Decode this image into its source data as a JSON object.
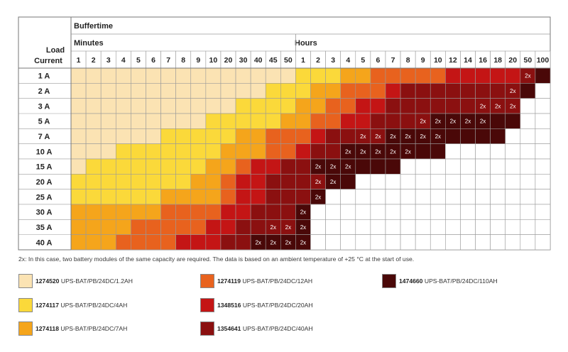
{
  "header": {
    "load_current_line1": "Load",
    "load_current_line2": "Current",
    "buffertime": "Buffertime",
    "minutes": "Minutes",
    "hours": "Hours"
  },
  "colors": {
    "A": "#FBE3B3",
    "B": "#FBD93A",
    "C": "#F5A51B",
    "D": "#E8621E",
    "E": "#C41515",
    "F": "#8B1010",
    "G": "#4A0808",
    "W": "#FFFFFF"
  },
  "chart_data": {
    "type": "table",
    "columns": [
      {
        "group": "Minutes",
        "label": "1"
      },
      {
        "group": "Minutes",
        "label": "2"
      },
      {
        "group": "Minutes",
        "label": "3"
      },
      {
        "group": "Minutes",
        "label": "4"
      },
      {
        "group": "Minutes",
        "label": "5"
      },
      {
        "group": "Minutes",
        "label": "6"
      },
      {
        "group": "Minutes",
        "label": "7"
      },
      {
        "group": "Minutes",
        "label": "8"
      },
      {
        "group": "Minutes",
        "label": "9"
      },
      {
        "group": "Minutes",
        "label": "10"
      },
      {
        "group": "Minutes",
        "label": "20"
      },
      {
        "group": "Minutes",
        "label": "30"
      },
      {
        "group": "Minutes",
        "label": "40"
      },
      {
        "group": "Minutes",
        "label": "45"
      },
      {
        "group": "Minutes",
        "label": "50"
      },
      {
        "group": "Hours",
        "label": "1"
      },
      {
        "group": "Hours",
        "label": "2"
      },
      {
        "group": "Hours",
        "label": "3"
      },
      {
        "group": "Hours",
        "label": "4"
      },
      {
        "group": "Hours",
        "label": "5"
      },
      {
        "group": "Hours",
        "label": "6"
      },
      {
        "group": "Hours",
        "label": "7"
      },
      {
        "group": "Hours",
        "label": "8"
      },
      {
        "group": "Hours",
        "label": "9"
      },
      {
        "group": "Hours",
        "label": "10"
      },
      {
        "group": "Hours",
        "label": "12"
      },
      {
        "group": "Hours",
        "label": "14"
      },
      {
        "group": "Hours",
        "label": "16"
      },
      {
        "group": "Hours",
        "label": "18"
      },
      {
        "group": "Hours",
        "label": "20"
      },
      {
        "group": "Hours",
        "label": "50"
      },
      {
        "group": "Hours",
        "label": "100"
      }
    ],
    "rows": [
      {
        "load": "1 A",
        "cells": "AAAAAAAAAAAAAAABBBCCDDDDDEEEEEFG",
        "double": [
          30
        ]
      },
      {
        "load": "2 A",
        "cells": "AAAAAAAAAAAAABBBCCDDDEFFFFFFFFGW",
        "double": [
          29
        ]
      },
      {
        "load": "3 A",
        "cells": "AAAAAAAAAAABBBBCCDDEEFFFFFFFFFWW",
        "double": [
          27,
          28,
          29
        ]
      },
      {
        "load": "5 A",
        "cells": "AAAAAAAAABBBBBCCDDEEFFFFGGGGGGWW",
        "double": [
          23,
          24,
          25,
          26,
          27
        ]
      },
      {
        "load": "7 A",
        "cells": "AAAAAABBBBBCCDDDEFFFFGGGGGGGGWWW",
        "double": [
          19,
          20,
          21,
          22,
          23,
          24
        ]
      },
      {
        "load": "10 A",
        "cells": "AAABBBBBBBCCCDDEFFGGGGGGGWWWWWWW",
        "double": [
          18,
          19,
          20,
          21,
          22
        ]
      },
      {
        "load": "15 A",
        "cells": "ABBBBBBBBCCDEEFFGGGGGGWWWWWWWWWW",
        "double": [
          16,
          17,
          18
        ]
      },
      {
        "load": "20 A",
        "cells": "BBBBBBBBCCDEEFFFFGGWWWWWWWWWWWWW",
        "double": [
          16,
          17
        ]
      },
      {
        "load": "25 A",
        "cells": "BBBBBBCCCCDEEFFFGWWWWWWWWWWWWWWW",
        "double": [
          16
        ]
      },
      {
        "load": "30 A",
        "cells": "CCCCCCDDDDEEFFFGWWWWWWWWWWWWWWWW",
        "double": [
          15
        ]
      },
      {
        "load": "35 A",
        "cells": "CCCCDDDDDEEFFFFGWWWWWWWWWWWWWWWW",
        "double": [
          13,
          14,
          15
        ]
      },
      {
        "load": "40 A",
        "cells": "CCCDDDDEEEFFGGGGWWWWWWWWWWWWWWWW",
        "double": [
          12,
          13,
          14,
          15
        ]
      }
    ],
    "double_label": "2x"
  },
  "footnote": "2x: In this case, two battery modules of the same capacity are required.  The data is based on an ambient temperature of +25 °C at the start of use.",
  "legend": [
    {
      "color_key": "A",
      "number": "1274520",
      "name": "UPS-BAT/PB/24DC/1.2AH"
    },
    {
      "color_key": "B",
      "number": "1274117",
      "name": "UPS-BAT/PB/24DC/4AH"
    },
    {
      "color_key": "C",
      "number": "1274118",
      "name": "UPS-BAT/PB/24DC/7AH"
    },
    {
      "color_key": "D",
      "number": "1274119",
      "name": "UPS-BAT/PB/24DC/12AH"
    },
    {
      "color_key": "E",
      "number": "1348516",
      "name": "UPS-BAT/PB/24DC/20AH"
    },
    {
      "color_key": "F",
      "number": "1354641",
      "name": "UPS-BAT/PB/24DC/40AH"
    },
    {
      "color_key": "G",
      "number": "1474660",
      "name": "UPS-BAT/PB/24DC/110AH"
    }
  ]
}
